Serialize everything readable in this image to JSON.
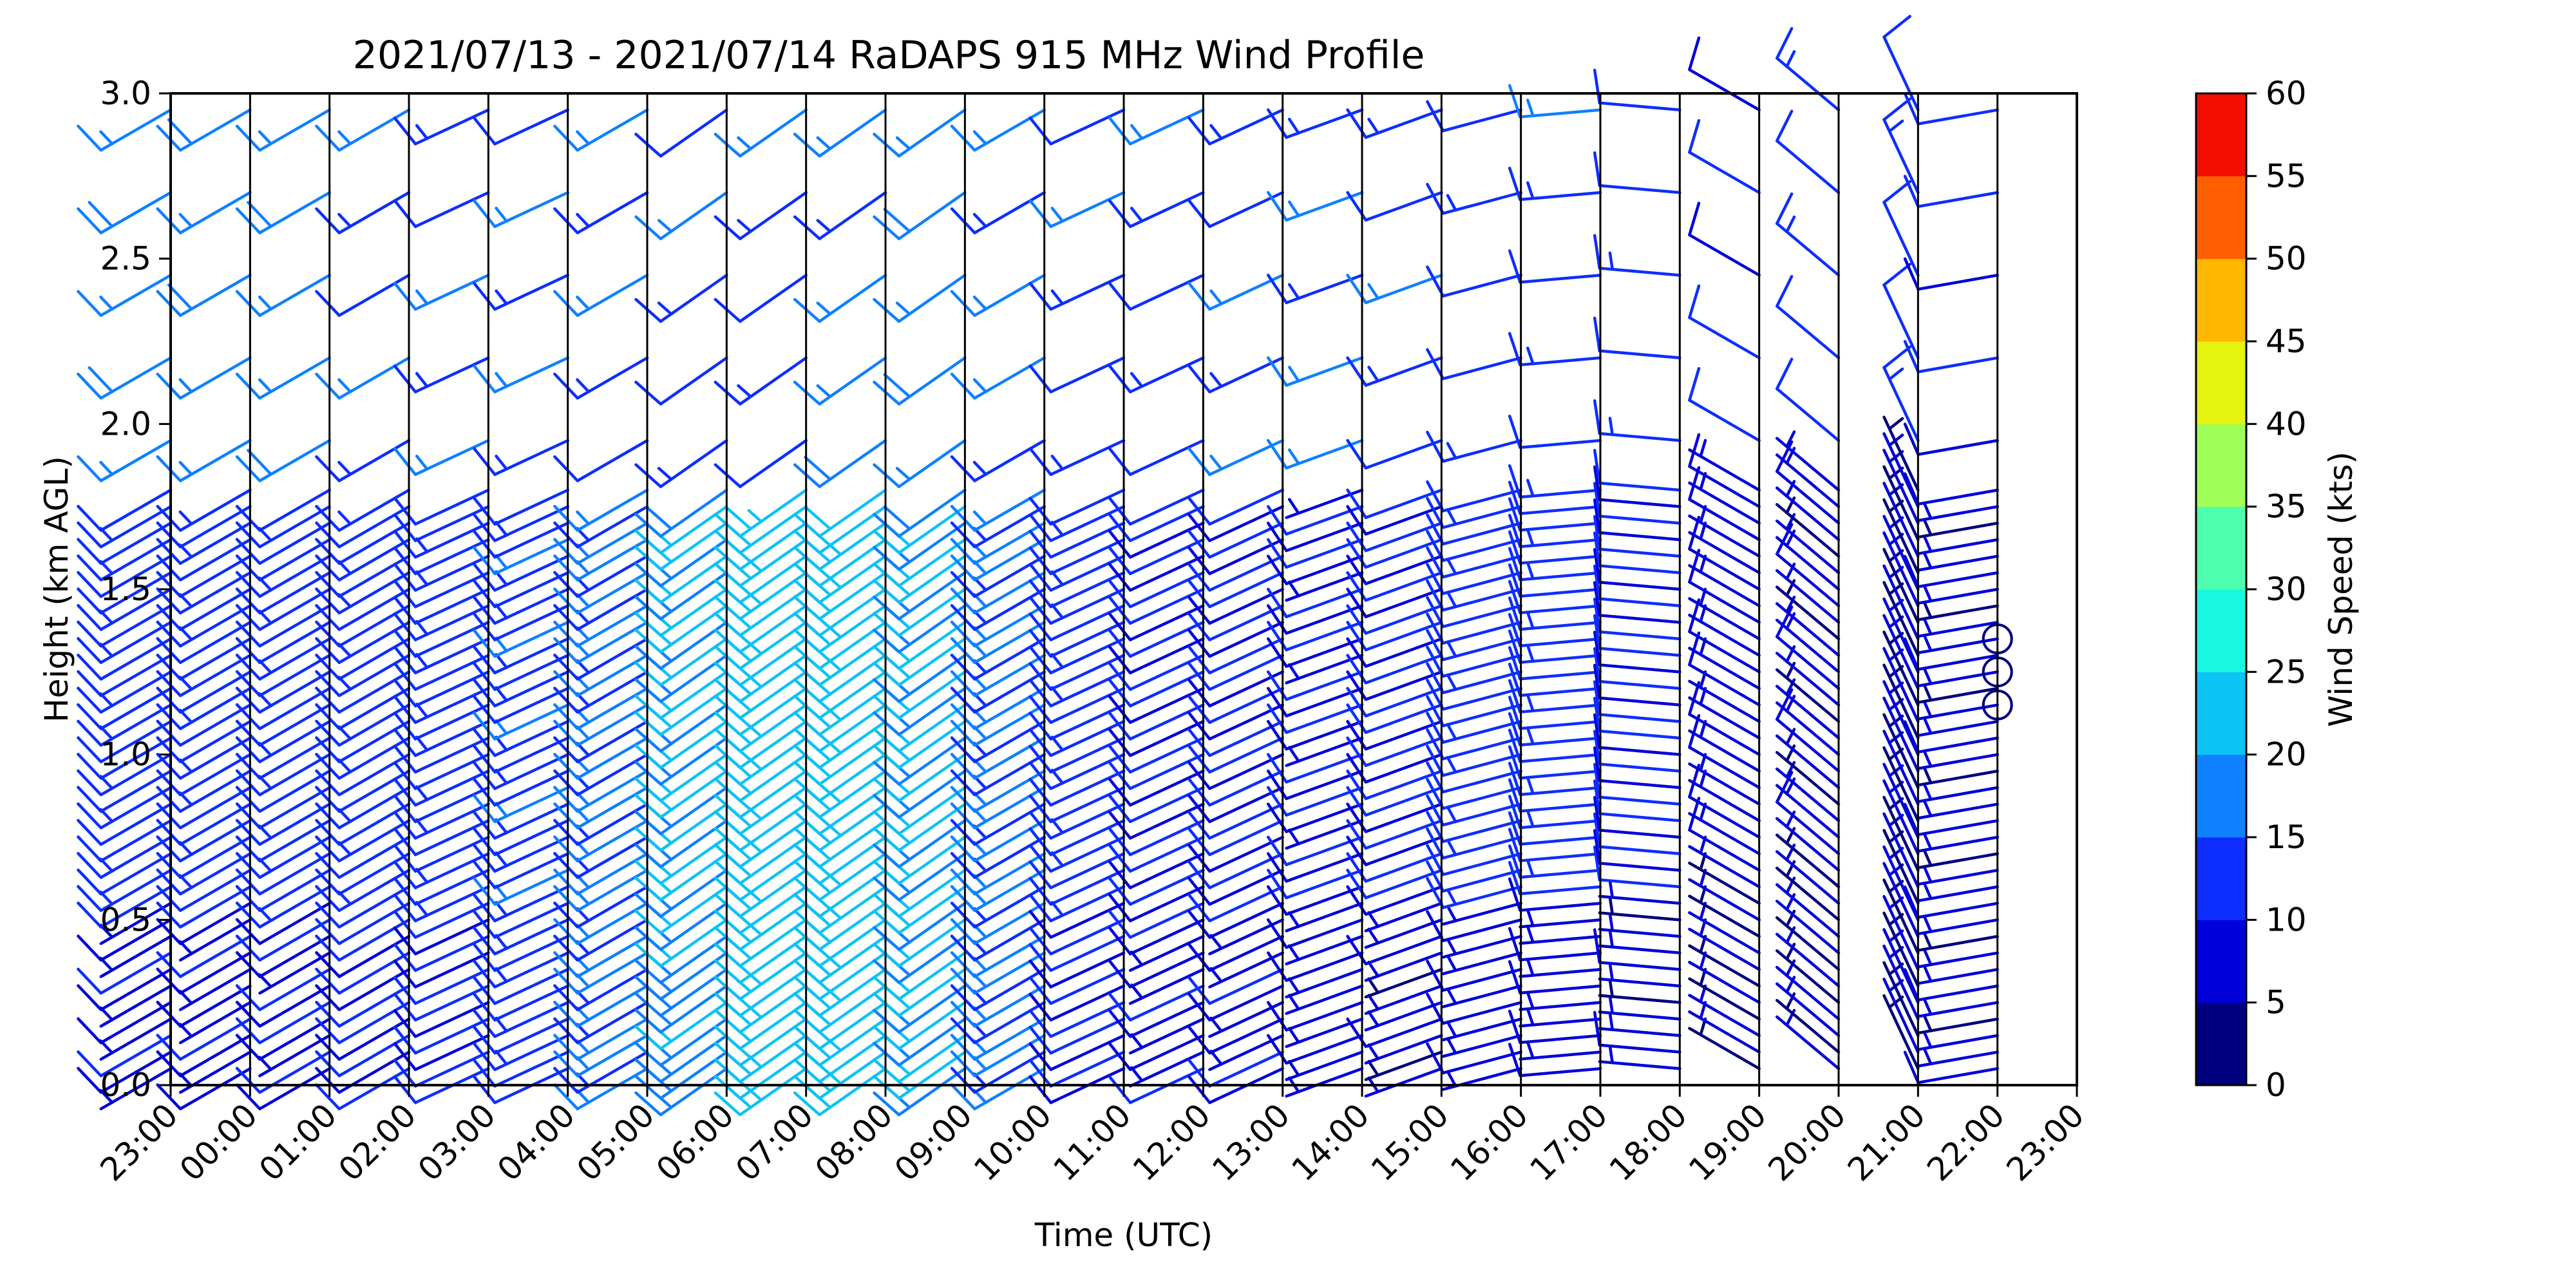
{
  "chart_data": {
    "type": "wind_barb_profile",
    "title": "2021/07/13 - 2021/07/14 RaDAPS 915 MHz Wind Profile",
    "xlabel": "Time (UTC)",
    "ylabel": "Height (km AGL)",
    "x_ticks": [
      "23:00",
      "00:00",
      "01:00",
      "02:00",
      "03:00",
      "04:00",
      "05:00",
      "06:00",
      "07:00",
      "08:00",
      "09:00",
      "10:00",
      "11:00",
      "12:00",
      "13:00",
      "14:00",
      "15:00",
      "16:00",
      "17:00",
      "18:00",
      "19:00",
      "20:00",
      "21:00",
      "22:00",
      "23:00"
    ],
    "y_ticks": [
      "0.0",
      "0.5",
      "1.0",
      "1.5",
      "2.0",
      "2.5",
      "3.0"
    ],
    "ylim": [
      0,
      3.0
    ],
    "colorbar": {
      "label": "Wind Speed (kts)",
      "ticks": [
        "0",
        "5",
        "10",
        "15",
        "20",
        "25",
        "30",
        "35",
        "40",
        "45",
        "50",
        "55",
        "60"
      ],
      "levels": [
        0,
        5,
        10,
        15,
        20,
        25,
        30,
        35,
        40,
        45,
        50,
        55,
        60
      ],
      "colors": [
        "#00007f",
        "#0000d9",
        "#0d2eff",
        "#0f80ff",
        "#0dc2f5",
        "#1af7e0",
        "#4dffad",
        "#a0ff56",
        "#e5f40f",
        "#ffb700",
        "#ff5f00",
        "#f30d00",
        "#7f0000"
      ]
    },
    "gate_heights_km": [
      0.05,
      0.1,
      0.15,
      0.2,
      0.25,
      0.3,
      0.35,
      0.4,
      0.45,
      0.5,
      0.55,
      0.6,
      0.65,
      0.7,
      0.75,
      0.8,
      0.85,
      0.9,
      0.95,
      1.0,
      1.05,
      1.1,
      1.15,
      1.2,
      1.25,
      1.3,
      1.35,
      1.4,
      1.45,
      1.5,
      1.55,
      1.6,
      1.65,
      1.7,
      1.75,
      1.8,
      1.95,
      2.2,
      2.45,
      2.7,
      2.95
    ],
    "profile_grid": {
      "times": [
        "23:00",
        "00:00",
        "01:00",
        "02:00",
        "03:00",
        "04:00",
        "05:00",
        "06:00",
        "07:00",
        "08:00",
        "09:00",
        "10:00",
        "11:00",
        "12:00",
        "13:00",
        "14:00",
        "15:00",
        "16:00",
        "17:00",
        "18:00",
        "19:00",
        "20:00",
        "21:00",
        "22:00"
      ],
      "direction_deg": [
        240,
        240,
        240,
        240,
        245,
        245,
        240,
        235,
        235,
        235,
        235,
        240,
        245,
        245,
        245,
        250,
        250,
        255,
        265,
        275,
        300,
        310,
        335,
        260
      ],
      "speed_low_kts": [
        8,
        8,
        9,
        10,
        10,
        12,
        15,
        18,
        22,
        22,
        20,
        15,
        10,
        8,
        8,
        7,
        6,
        7,
        7,
        6,
        5,
        5,
        5,
        6
      ],
      "speed_mid_kts": [
        12,
        12,
        12,
        12,
        12,
        13,
        15,
        20,
        22,
        22,
        20,
        15,
        12,
        10,
        10,
        9,
        10,
        12,
        12,
        10,
        7,
        6,
        5,
        6
      ],
      "speed_high_kts": [
        17,
        17,
        17,
        14,
        14,
        14,
        14,
        13,
        13,
        16,
        17,
        15,
        13,
        13,
        14,
        15,
        13,
        12,
        13,
        12,
        10,
        12,
        12,
        10
      ]
    },
    "calm_markers": {
      "time": "22:00",
      "heights_km": [
        1.15,
        1.25,
        1.35
      ]
    }
  }
}
